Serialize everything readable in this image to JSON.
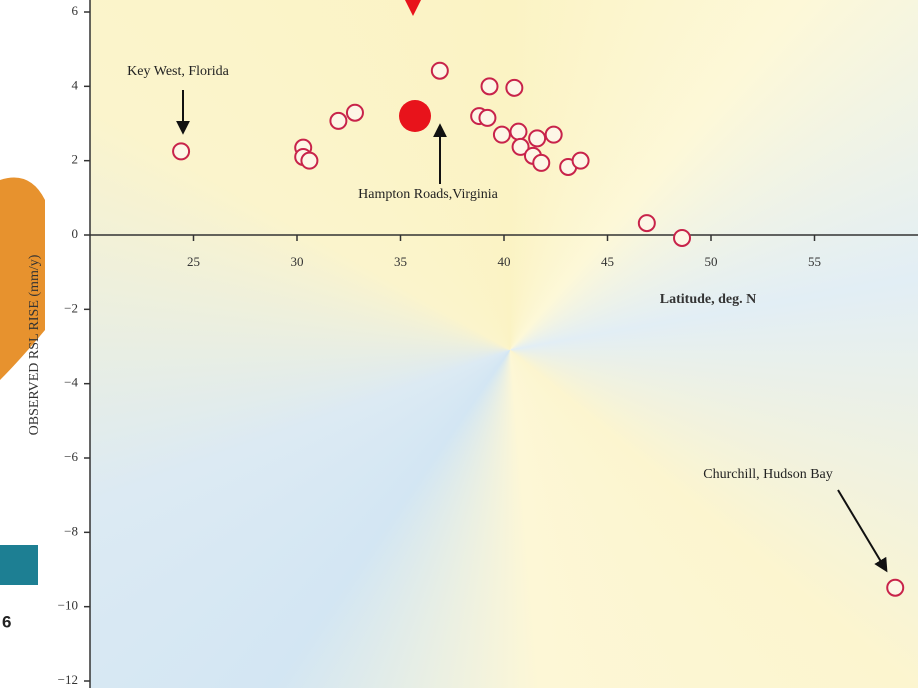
{
  "chart_data": {
    "type": "scatter",
    "x_label": "Latitude, deg. N",
    "y_label": "OBSERVED RSL RISE (mm/y)",
    "x": [
      24.4,
      30.3,
      30.3,
      30.6,
      32.0,
      32.8,
      36.9,
      38.8,
      39.2,
      39.3,
      40.5,
      39.9,
      40.7,
      40.8,
      41.4,
      41.6,
      41.8,
      42.4,
      43.1,
      43.7,
      46.9,
      48.6,
      58.9
    ],
    "values": [
      2.25,
      2.35,
      2.1,
      2.0,
      3.07,
      3.29,
      4.42,
      3.2,
      3.15,
      4.0,
      3.96,
      2.7,
      2.78,
      2.37,
      2.13,
      2.6,
      1.94,
      2.7,
      1.83,
      2.0,
      0.32,
      -0.08,
      -9.49
    ],
    "color": "#c8234a",
    "xlim": [
      20,
      60
    ],
    "ylim": [
      -12,
      6
    ],
    "xticks": [
      25,
      30,
      35,
      40,
      45,
      50,
      55
    ],
    "yticks": [
      6,
      4,
      2,
      0,
      {
        "value": -2,
        "label": "−2"
      },
      {
        "value": -4,
        "label": "−4"
      },
      {
        "value": -6,
        "label": "−6"
      },
      {
        "value": -8,
        "label": "−8"
      },
      {
        "value": -10,
        "label": "−10"
      },
      {
        "value": -12,
        "label": "−12"
      }
    ],
    "annotations": [
      "Key West, Florida",
      "Hampton Roads,Virginia",
      "Churchill, Hudson Bay"
    ]
  },
  "cropped_text": "6"
}
